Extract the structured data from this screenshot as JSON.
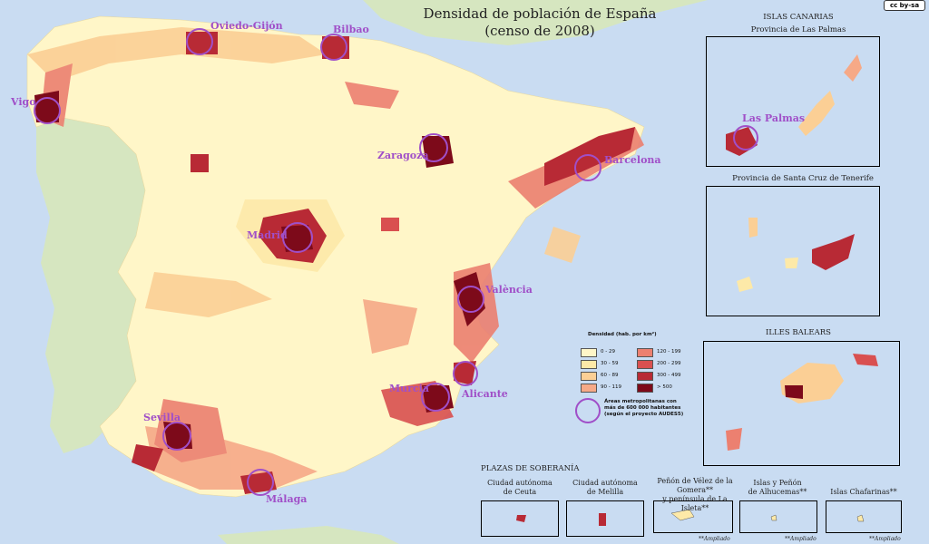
{
  "map": {
    "title_line1": "Densidad de población de España",
    "title_line2": "(censo de 2008)",
    "colors": {
      "sea": "#c9dcf2",
      "land_outside": "#d6e6c0",
      "d0_29": "#fff6c8",
      "d30_59": "#fde9a8",
      "d60_89": "#fbcf95",
      "d90_119": "#f6a987",
      "d120_199": "#ec8070",
      "d200_299": "#d95050",
      "d300_499": "#b82a35",
      "d500": "#7d0a1a",
      "metro_circle": "#a04fc8"
    },
    "cities": {
      "oviedo": "Oviedo-Gijón",
      "bilbao": "Bilbao",
      "vigo": "Vigo",
      "zaragoza": "Zaragoza",
      "barcelona": "Barcelona",
      "madrid": "Madrid",
      "valencia": "València",
      "murcia": "Murcia",
      "alicante": "Alicante",
      "sevilla": "Sevilla",
      "malaga": "Málaga",
      "las_palmas": "Las Palmas"
    }
  },
  "insets": {
    "canarias_title": "ISLAS CANARIAS",
    "las_palmas_title": "Provincia de Las Palmas",
    "tenerife_title": "Provincia de Santa Cruz de Tenerife",
    "baleares_title": "ILLES BALEARS"
  },
  "legend": {
    "title": "Densidad (hab. por km²)",
    "items": [
      "0 - 29",
      "30 - 59",
      "60 - 89",
      "90 - 119",
      "120 - 199",
      "200 - 299",
      "300 - 499",
      "> 500"
    ],
    "metro_text_1": "Áreas metropolitanas con",
    "metro_text_2": "más de 600 000 habitantes",
    "metro_text_3": "(según el proyecto AUDES5)"
  },
  "plazas": {
    "title": "PLAZAS DE SOBERANÍA",
    "ceuta_1": "Ciudad autónoma",
    "ceuta_2": "de Ceuta",
    "melilla_1": "Ciudad autónoma",
    "melilla_2": "de Melilla",
    "velez_1": "Peñón de Vélez de la Gomera**",
    "velez_2": "y península de La Isleta**",
    "alhucemas_1": "Islas y Peñón",
    "alhucemas_2": "de Alhucemas**",
    "chafarinas": "Islas Chafarinas**",
    "ampliado": "**Ampliado"
  },
  "license": "cc by-sa"
}
